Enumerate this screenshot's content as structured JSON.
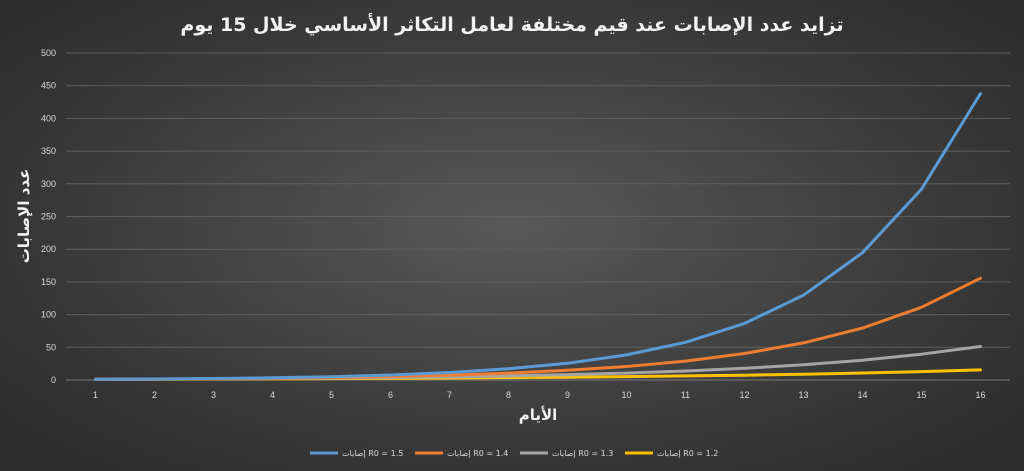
{
  "chart_data": {
    "type": "line",
    "title": "تزايد عدد الإصابات عند قيم مختلفة لعامل التكاثر الأساسي خلال 15 يوم",
    "xlabel": "الأيام",
    "ylabel": "عدد الإصابات",
    "x": [
      1,
      2,
      3,
      4,
      5,
      6,
      7,
      8,
      9,
      10,
      11,
      12,
      13,
      14,
      15,
      16
    ],
    "ylim": [
      0,
      500
    ],
    "yticks": [
      0,
      50,
      100,
      150,
      200,
      250,
      300,
      350,
      400,
      450,
      500
    ],
    "grid": true,
    "legend_position": "bottom",
    "series": [
      {
        "name": "إصابات R0 = 1.5",
        "color": "#5b9bd5",
        "values": [
          1,
          1.5,
          2.3,
          3.4,
          5.1,
          7.6,
          11.4,
          17.1,
          25.6,
          38.4,
          57.7,
          86.5,
          129.7,
          194.6,
          291.9,
          437.9
        ]
      },
      {
        "name": "إصابات R0 = 1.4",
        "color": "#ed7d31",
        "values": [
          1,
          1.4,
          2.0,
          2.7,
          3.8,
          5.4,
          7.5,
          10.5,
          14.8,
          20.7,
          28.9,
          40.5,
          56.7,
          79.4,
          111.1,
          155.6
        ]
      },
      {
        "name": "إصابات R0 = 1.3",
        "color": "#a5a5a5",
        "values": [
          1,
          1.3,
          1.7,
          2.2,
          2.9,
          3.7,
          4.8,
          6.3,
          8.2,
          10.6,
          13.8,
          17.9,
          23.3,
          30.3,
          39.4,
          51.2
        ]
      },
      {
        "name": "إصابات R0 = 1.2",
        "color": "#ffc000",
        "values": [
          1,
          1.2,
          1.4,
          1.7,
          2.1,
          2.5,
          3.0,
          3.6,
          4.3,
          5.2,
          6.2,
          7.4,
          8.9,
          10.7,
          12.8,
          15.4
        ]
      }
    ]
  }
}
